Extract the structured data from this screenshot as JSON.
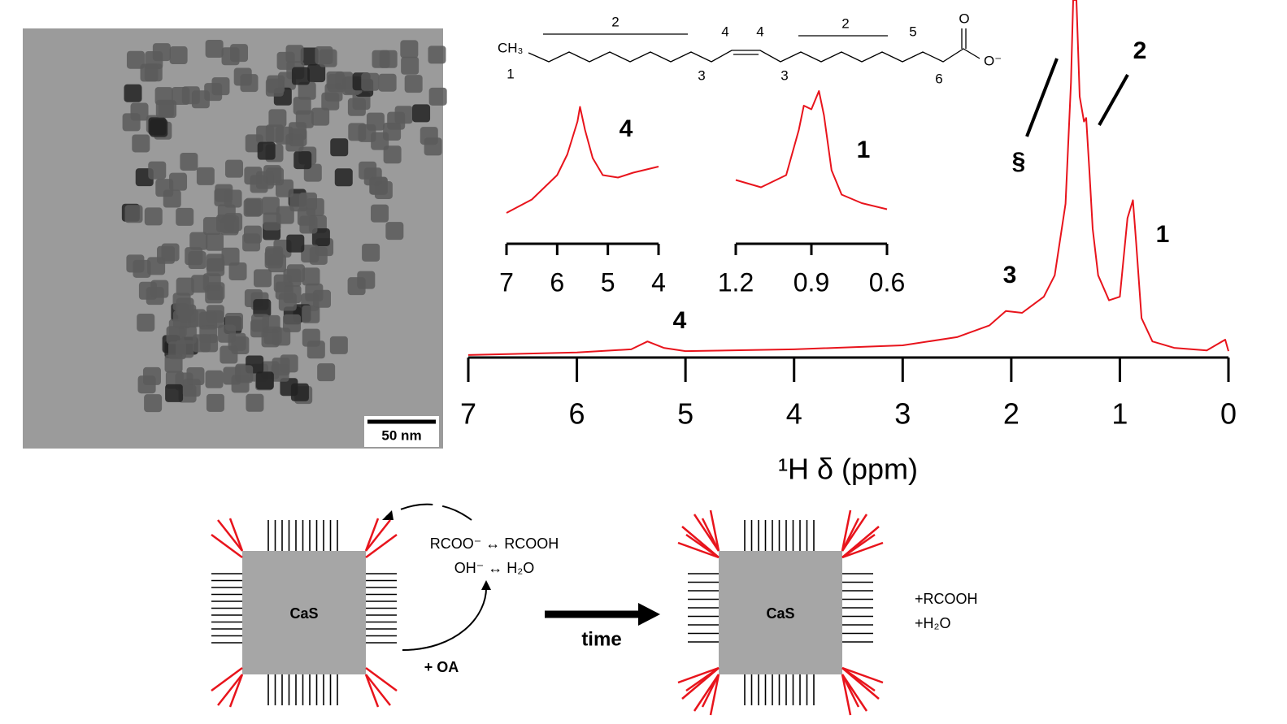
{
  "tem": {
    "scale_bar": "50 nm"
  },
  "structure": {
    "groups": [
      "CH₃",
      "O",
      "O⁻"
    ],
    "labels": [
      "1",
      "2",
      "3",
      "4",
      "4",
      "3",
      "2",
      "5",
      "6"
    ]
  },
  "chart_data": [
    {
      "type": "line",
      "x_label": "¹H δ (ppm)",
      "xlim": [
        7,
        0
      ],
      "xticks": [
        7,
        6,
        5,
        4,
        3,
        2,
        1,
        0
      ],
      "ylim": [
        0,
        100
      ],
      "annotations": [
        "4",
        "3",
        "§",
        "2",
        "1"
      ],
      "series": [
        {
          "color": "#e8141c",
          "x": [
            7,
            6,
            5.5,
            5.35,
            5.2,
            5,
            4,
            3,
            2.5,
            2.2,
            2.05,
            1.9,
            1.7,
            1.6,
            1.5,
            1.45,
            1.43,
            1.4,
            1.37,
            1.33,
            1.31,
            1.28,
            1.25,
            1.2,
            1.1,
            1,
            0.93,
            0.88,
            0.85,
            0.8,
            0.7,
            0.5,
            0.2,
            0.03,
            0
          ],
          "values": [
            0.7,
            1.4,
            2.3,
            4.5,
            2.7,
            1.8,
            2.3,
            3.4,
            5.7,
            9,
            13,
            12.5,
            17,
            23,
            43,
            77,
            100,
            100,
            73,
            66,
            67,
            52,
            36,
            23,
            16,
            17,
            39,
            44,
            32,
            11,
            4.5,
            2.7,
            2,
            5,
            1.8
          ]
        }
      ]
    },
    {
      "type": "line",
      "label": "4",
      "xlim": [
        7,
        4
      ],
      "xticks": [
        7,
        6,
        5,
        4
      ],
      "ylim": [
        0,
        100
      ],
      "series": [
        {
          "color": "#e8141c",
          "x": [
            7,
            6.5,
            6,
            5.8,
            5.6,
            5.55,
            5.45,
            5.3,
            5.1,
            4.8,
            4.5,
            4
          ],
          "values": [
            0,
            11,
            31,
            48,
            75,
            87,
            68,
            45,
            31,
            29,
            33,
            38
          ]
        }
      ]
    },
    {
      "type": "line",
      "label": "1",
      "xlim": [
        1.2,
        0.6
      ],
      "xticks": [
        1.2,
        0.9,
        0.6
      ],
      "ylim": [
        0,
        100
      ],
      "series": [
        {
          "color": "#e8141c",
          "x": [
            1.2,
            1.1,
            1,
            0.95,
            0.93,
            0.9,
            0.87,
            0.85,
            0.82,
            0.78,
            0.7,
            0.6
          ],
          "values": [
            27,
            21,
            31,
            68,
            88,
            85,
            100,
            80,
            35,
            15,
            8,
            3
          ]
        }
      ]
    }
  ],
  "scheme": {
    "core": "CaS",
    "equilibria": [
      "RCOO⁻ ↔ RCOOH",
      "OH⁻ ↔ H₂O"
    ],
    "reagent": "+ OA",
    "arrow": "time",
    "core_after": "CaS",
    "products": [
      "+RCOOH",
      "+H₂O"
    ]
  }
}
